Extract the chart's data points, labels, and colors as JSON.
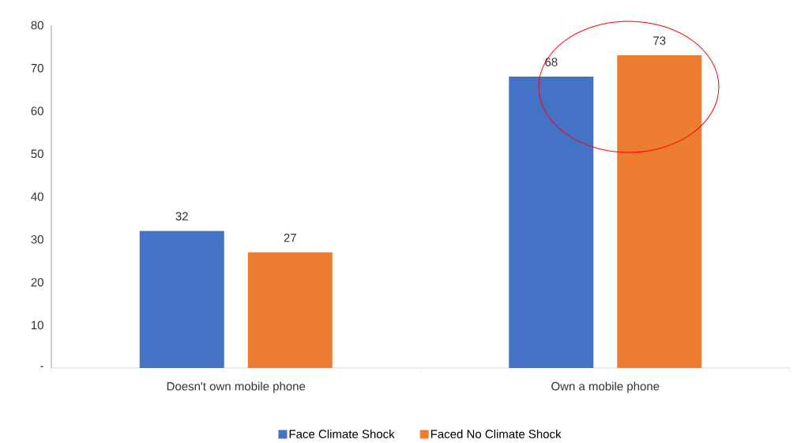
{
  "chart_data": {
    "type": "bar",
    "categories": [
      "Doesn't own mobile phone",
      "Own a mobile phone"
    ],
    "series": [
      {
        "name": "Face Climate Shock",
        "color": "#4472c4",
        "values": [
          32,
          68
        ]
      },
      {
        "name": "Faced No Climate Shock",
        "color": "#ed7d31",
        "values": [
          27,
          73
        ]
      }
    ],
    "ylim": [
      0,
      80
    ],
    "yticks": [
      {
        "value": 0,
        "label": "-"
      },
      10,
      20,
      30,
      40,
      50,
      60,
      70,
      80
    ],
    "grid": false,
    "legend": "bottom",
    "data_labels": true
  }
}
